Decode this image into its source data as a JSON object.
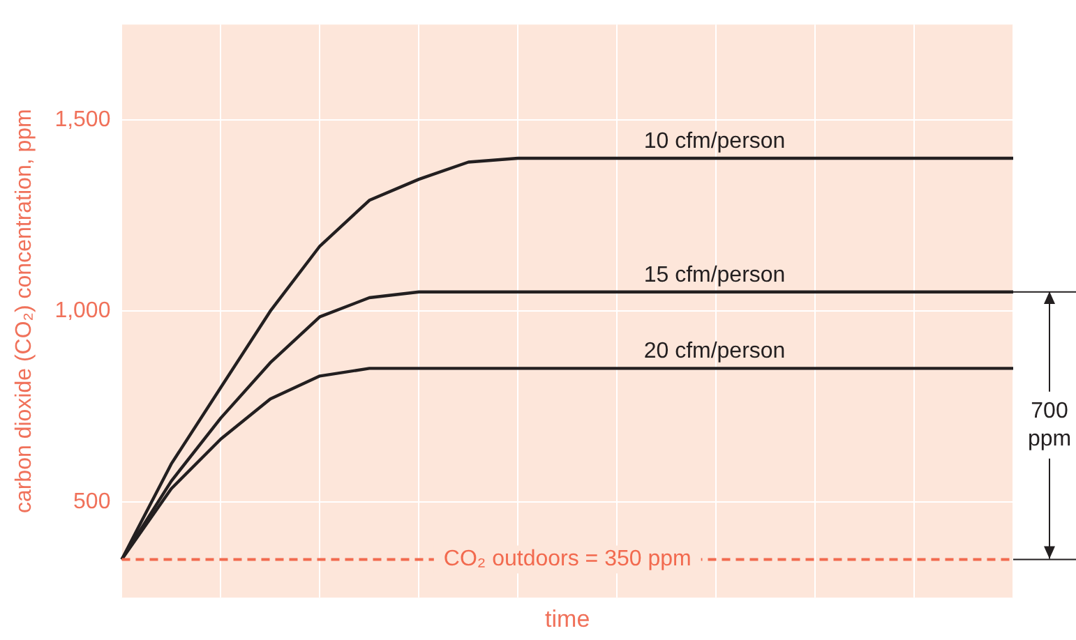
{
  "chart_data": {
    "type": "line",
    "xlabel": "time",
    "ylabel": "carbon dioxide (CO₂) concentration, ppm",
    "categories": [
      null,
      null,
      null,
      null,
      null,
      null,
      null,
      null,
      null,
      null,
      null,
      null,
      null,
      null,
      null,
      null,
      null,
      null,
      null
    ],
    "series": [
      {
        "name": "10 cfm/person",
        "color": "#231f20",
        "values": [
          350,
          600,
          800,
          1000,
          1170,
          1290,
          1345,
          1390,
          1400,
          1400,
          1400,
          1400,
          1400,
          1400,
          1400,
          1400,
          1400,
          1400,
          1400
        ]
      },
      {
        "name": "15 cfm/person",
        "color": "#231f20",
        "values": [
          350,
          555,
          720,
          865,
          985,
          1035,
          1050,
          1050,
          1050,
          1050,
          1050,
          1050,
          1050,
          1050,
          1050,
          1050,
          1050,
          1050,
          1050
        ]
      },
      {
        "name": "20 cfm/person",
        "color": "#231f20",
        "values": [
          350,
          535,
          665,
          770,
          830,
          850,
          850,
          850,
          850,
          850,
          850,
          850,
          850,
          850,
          850,
          850,
          850,
          850,
          850
        ]
      }
    ],
    "ylim": [
      250,
      1750
    ],
    "yticks": [
      500,
      {
        "value": 1000,
        "label": "1,000"
      },
      {
        "value": 1500,
        "label": "1,500"
      }
    ],
    "tick_labels": "y",
    "grid": true,
    "legend": false,
    "marker": "none",
    "line_style": "solid",
    "ref_lines": [
      {
        "axis": "y",
        "value": 350,
        "label": "CO₂ outdoors = 350 ppm",
        "color": "#f26a4f",
        "line_style": "dashed"
      }
    ],
    "annotations": [
      "700 ppm"
    ]
  }
}
